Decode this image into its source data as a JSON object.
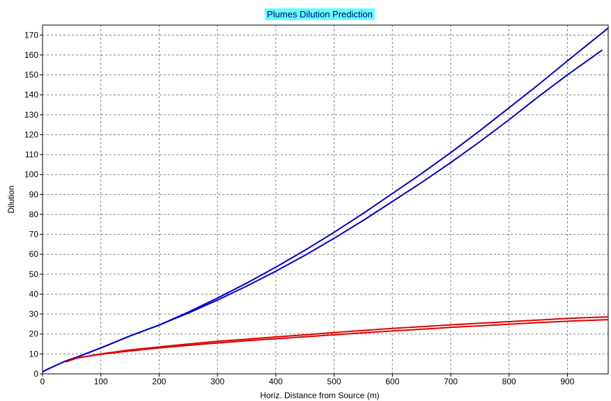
{
  "chart_data": {
    "type": "line",
    "title": "Plumes Dilution Prediction",
    "xlabel": "Horiz. Distance from Source (m)",
    "ylabel": "Dilution",
    "xlim": [
      0,
      970
    ],
    "ylim": [
      0,
      175
    ],
    "x_ticks": [
      0,
      100,
      200,
      300,
      400,
      500,
      600,
      700,
      800,
      900
    ],
    "y_ticks": [
      0,
      10,
      20,
      30,
      40,
      50,
      60,
      70,
      80,
      90,
      100,
      110,
      120,
      130,
      140,
      150,
      160,
      170
    ],
    "grid": true,
    "grid_style": "dashed",
    "title_background": "#66FFFF",
    "series": [
      {
        "color": "#0000CC",
        "points": [
          [
            0,
            1
          ],
          [
            10,
            2.5
          ],
          [
            25,
            4.5
          ],
          [
            40,
            6.5
          ],
          [
            60,
            8.5
          ],
          [
            100,
            13
          ],
          [
            150,
            19
          ],
          [
            200,
            24.5
          ],
          [
            250,
            30.5
          ],
          [
            300,
            37
          ],
          [
            350,
            44
          ],
          [
            400,
            51.5
          ],
          [
            450,
            59.5
          ],
          [
            500,
            68
          ],
          [
            550,
            77
          ],
          [
            600,
            86.5
          ],
          [
            650,
            96
          ],
          [
            700,
            106
          ],
          [
            750,
            116.5
          ],
          [
            800,
            127.5
          ],
          [
            850,
            139
          ],
          [
            900,
            150
          ],
          [
            960,
            162.5
          ]
        ]
      },
      {
        "color": "#0000CC",
        "points": [
          [
            0,
            1
          ],
          [
            10,
            2.5
          ],
          [
            25,
            4.5
          ],
          [
            40,
            6.5
          ],
          [
            60,
            8.5
          ],
          [
            100,
            13
          ],
          [
            150,
            19
          ],
          [
            200,
            24.5
          ],
          [
            250,
            31
          ],
          [
            300,
            38
          ],
          [
            350,
            45.5
          ],
          [
            400,
            53.5
          ],
          [
            450,
            62
          ],
          [
            500,
            71
          ],
          [
            550,
            80.5
          ],
          [
            600,
            90.5
          ],
          [
            650,
            100.5
          ],
          [
            700,
            111
          ],
          [
            750,
            122
          ],
          [
            800,
            133.5
          ],
          [
            850,
            145
          ],
          [
            900,
            157
          ],
          [
            970,
            173.5
          ]
        ]
      },
      {
        "color": "#DD0000",
        "points": [
          [
            40,
            6
          ],
          [
            60,
            8
          ],
          [
            100,
            10
          ],
          [
            150,
            12
          ],
          [
            200,
            13.5
          ],
          [
            250,
            15
          ],
          [
            300,
            16.3
          ],
          [
            350,
            17.4
          ],
          [
            400,
            18.5
          ],
          [
            450,
            19.6
          ],
          [
            500,
            20.7
          ],
          [
            550,
            21.8
          ],
          [
            600,
            22.8
          ],
          [
            650,
            23.7
          ],
          [
            700,
            24.6
          ],
          [
            750,
            25.4
          ],
          [
            800,
            26.2
          ],
          [
            850,
            27
          ],
          [
            900,
            27.8
          ],
          [
            970,
            28.6
          ]
        ]
      },
      {
        "color": "#DD0000",
        "points": [
          [
            40,
            6
          ],
          [
            60,
            8
          ],
          [
            100,
            9.8
          ],
          [
            150,
            11.5
          ],
          [
            200,
            13
          ],
          [
            250,
            14.3
          ],
          [
            300,
            15.5
          ],
          [
            350,
            16.6
          ],
          [
            400,
            17.6
          ],
          [
            450,
            18.6
          ],
          [
            500,
            19.6
          ],
          [
            550,
            20.6
          ],
          [
            600,
            21.5
          ],
          [
            650,
            22.4
          ],
          [
            700,
            23.3
          ],
          [
            750,
            24.1
          ],
          [
            800,
            24.9
          ],
          [
            850,
            25.7
          ],
          [
            900,
            26.4
          ],
          [
            970,
            27.2
          ]
        ]
      }
    ]
  }
}
